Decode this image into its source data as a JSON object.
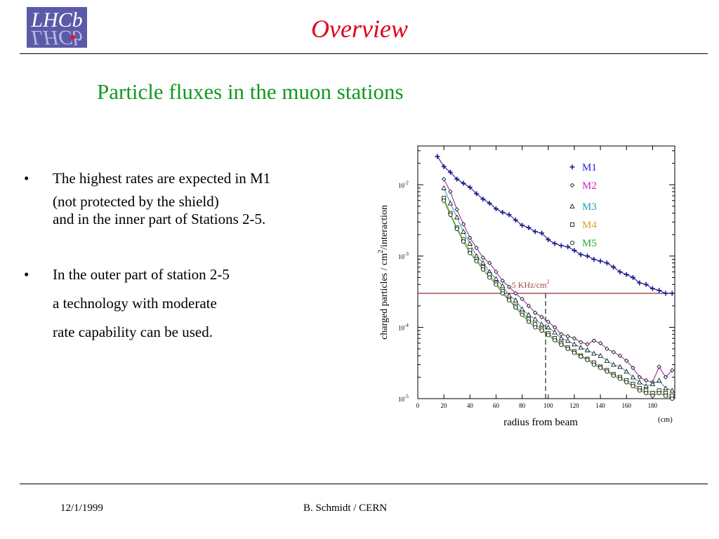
{
  "logo": {
    "text": "LHCb"
  },
  "header": {
    "title": "Overview"
  },
  "subtitle": "Particle fluxes in the muon stations",
  "bullets": [
    {
      "lines": [
        "The highest rates are expected in M1",
        "(not protected by the shield)",
        "and in the inner part of Stations 2-5."
      ]
    },
    {
      "lines": [
        "In the outer part of station 2-5",
        "a technology with moderate",
        "rate capability can be used."
      ]
    }
  ],
  "chart_data": {
    "type": "line",
    "xlabel": "radius from beam",
    "xunit": "(cm)",
    "ylabel_prefix": "charged particles / cm",
    "ylabel_sup": "2",
    "ylabel_suffix": "/interaction",
    "x_ticks": [
      0,
      20,
      40,
      60,
      80,
      100,
      120,
      140,
      160,
      180
    ],
    "xlim": [
      0,
      197
    ],
    "y_scale": "log",
    "ylim": [
      1e-05,
      0.035
    ],
    "y_ticks": [
      {
        "base": "10",
        "exp": "-2",
        "value": 0.01
      },
      {
        "base": "10",
        "exp": "-3",
        "value": 0.001
      },
      {
        "base": "10",
        "exp": "-4",
        "value": 0.0001
      },
      {
        "base": "10",
        "exp": "-5",
        "value": 1e-05
      }
    ],
    "threshold": {
      "value": 0.0003,
      "label": "5 KHz/cm",
      "label_sup": "2",
      "color": "#a04040"
    },
    "vline": {
      "x": 98
    },
    "legend_position": "top-right",
    "series": [
      {
        "name": "M1",
        "color": "#1a1a8c",
        "label_color": "#2222dd",
        "marker": "cross",
        "x": [
          15,
          20,
          25,
          30,
          35,
          40,
          45,
          50,
          55,
          60,
          65,
          70,
          75,
          80,
          85,
          90,
          95,
          100,
          105,
          110,
          115,
          120,
          125,
          130,
          135,
          140,
          145,
          150,
          155,
          160,
          165,
          170,
          175,
          180,
          185,
          190,
          195
        ],
        "y": [
          0.025,
          0.018,
          0.015,
          0.012,
          0.0105,
          0.0092,
          0.0075,
          0.0063,
          0.0055,
          0.0046,
          0.0041,
          0.0038,
          0.0032,
          0.0027,
          0.0025,
          0.0022,
          0.0021,
          0.0017,
          0.0015,
          0.0014,
          0.00135,
          0.0012,
          0.00105,
          0.001,
          0.0009,
          0.00085,
          0.0008,
          0.0007,
          0.0006,
          0.00055,
          0.0005,
          0.00042,
          0.0004,
          0.00035,
          0.00033,
          0.0003,
          0.0003
        ]
      },
      {
        "name": "M2",
        "color": "#9b2aa8",
        "label_color": "#cc22cc",
        "marker": "diamond",
        "x": [
          20,
          25,
          30,
          35,
          40,
          45,
          50,
          55,
          60,
          65,
          70,
          75,
          80,
          85,
          90,
          95,
          100,
          105,
          110,
          115,
          120,
          125,
          130,
          135,
          140,
          145,
          150,
          155,
          160,
          165,
          170,
          175,
          180,
          185,
          190,
          195
        ],
        "y": [
          0.012,
          0.008,
          0.0045,
          0.0028,
          0.0018,
          0.0013,
          0.00095,
          0.0008,
          0.0006,
          0.00045,
          0.00037,
          0.0003,
          0.00025,
          0.0002,
          0.00016,
          0.00014,
          0.00012,
          0.0001,
          8e-05,
          7.5e-05,
          7e-05,
          6.2e-05,
          5.8e-05,
          6.5e-05,
          6e-05,
          5e-05,
          4.5e-05,
          4e-05,
          3.4e-05,
          2.7e-05,
          2e-05,
          1.8e-05,
          1.7e-05,
          2.8e-05,
          2e-05,
          2.5e-05
        ]
      },
      {
        "name": "M3",
        "color": "#2aa8b8",
        "label_color": "#10a6b8",
        "marker": "triangle",
        "x": [
          20,
          25,
          30,
          35,
          40,
          45,
          50,
          55,
          60,
          65,
          70,
          75,
          80,
          85,
          90,
          95,
          100,
          105,
          110,
          115,
          120,
          125,
          130,
          135,
          140,
          145,
          150,
          155,
          160,
          165,
          170,
          175,
          180,
          185,
          190,
          195
        ],
        "y": [
          0.009,
          0.0055,
          0.0035,
          0.0022,
          0.0015,
          0.001,
          0.0008,
          0.0006,
          0.00048,
          0.00038,
          0.00028,
          0.00024,
          0.00018,
          0.00015,
          0.00013,
          0.00011,
          0.0001,
          8.5e-05,
          7e-05,
          6.5e-05,
          5.8e-05,
          5.2e-05,
          4.8e-05,
          4.3e-05,
          4e-05,
          3.4e-05,
          3e-05,
          2.8e-05,
          2.4e-05,
          2e-05,
          1.7e-05,
          1.5e-05,
          1.6e-05,
          1.8e-05,
          1.4e-05,
          1.3e-05
        ]
      },
      {
        "name": "M4",
        "color": "#c8a820",
        "label_color": "#d8a818",
        "marker": "square",
        "x": [
          20,
          25,
          30,
          35,
          40,
          45,
          50,
          55,
          60,
          65,
          70,
          75,
          80,
          85,
          90,
          95,
          100,
          105,
          110,
          115,
          120,
          125,
          130,
          135,
          140,
          145,
          150,
          155,
          160,
          165,
          170,
          175,
          180,
          185,
          190,
          195
        ],
        "y": [
          0.0065,
          0.004,
          0.0025,
          0.0017,
          0.0012,
          0.0009,
          0.0007,
          0.00055,
          0.00042,
          0.00032,
          0.00025,
          0.0002,
          0.00016,
          0.00013,
          0.00011,
          9.5e-05,
          8.2e-05,
          7e-05,
          6e-05,
          5.2e-05,
          4.6e-05,
          4e-05,
          3.6e-05,
          3.2e-05,
          2.8e-05,
          2.5e-05,
          2.2e-05,
          2e-05,
          1.8e-05,
          1.6e-05,
          1.4e-05,
          1.3e-05,
          1.2e-05,
          1.3e-05,
          1.2e-05,
          1.1e-05
        ]
      },
      {
        "name": "M5",
        "color": "#20a040",
        "label_color": "#22aa33",
        "marker": "circle",
        "x": [
          20,
          25,
          30,
          35,
          40,
          45,
          50,
          55,
          60,
          65,
          70,
          75,
          80,
          85,
          90,
          95,
          100,
          105,
          110,
          115,
          120,
          125,
          130,
          135,
          140,
          145,
          150,
          155,
          160,
          165,
          170,
          175,
          180,
          185,
          190,
          195
        ],
        "y": [
          0.006,
          0.0038,
          0.0024,
          0.0016,
          0.0011,
          0.00085,
          0.00065,
          0.0005,
          0.0004,
          0.0003,
          0.00024,
          0.00019,
          0.00015,
          0.00012,
          0.0001,
          9e-05,
          7.8e-05,
          6.6e-05,
          5.7e-05,
          5e-05,
          4.4e-05,
          3.9e-05,
          3.5e-05,
          3e-05,
          2.7e-05,
          2.4e-05,
          2.1e-05,
          1.9e-05,
          1.7e-05,
          1.5e-05,
          1.3e-05,
          1.2e-05,
          1.1e-05,
          1.2e-05,
          1.1e-05,
          1e-05
        ]
      }
    ]
  },
  "footer": {
    "date": "12/1/1999",
    "author": "B. Schmidt / CERN"
  },
  "colors": {
    "title": "#e0001b",
    "subtitle": "#109a1e",
    "logo_bg": "#5b5aa8"
  }
}
